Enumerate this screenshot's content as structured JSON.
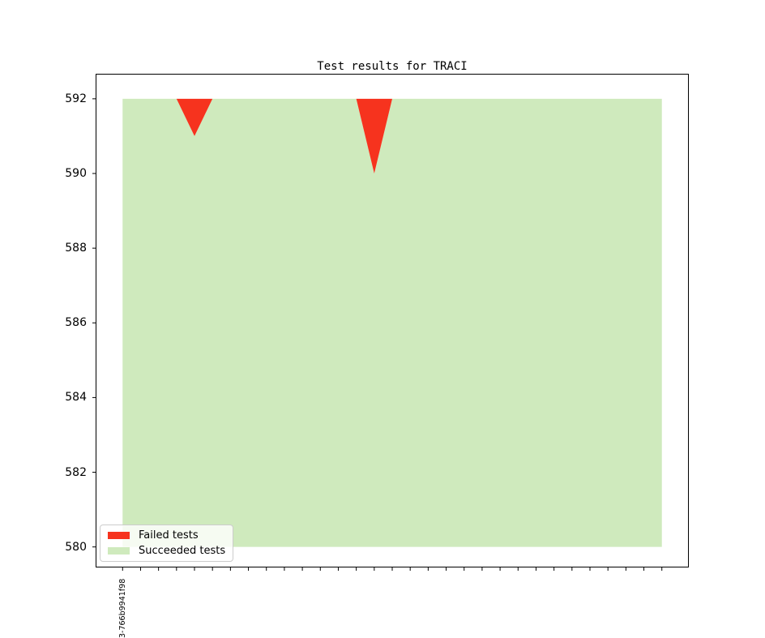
{
  "chart_data": {
    "type": "area",
    "stacked": true,
    "title": "Test results for TRACI",
    "stack_total_per_point": 592,
    "n_points": 31,
    "x_first_tick_label": "3-766b9941f98",
    "yticks": [
      580,
      582,
      584,
      586,
      588,
      590,
      592
    ],
    "ylim": [
      579.45,
      592.67
    ],
    "xlim_index": [
      -1.5,
      31.5
    ],
    "area_baseline": 580,
    "grid": false,
    "legend": {
      "position": "lower left",
      "entries": [
        "Failed tests",
        "Succeeded tests"
      ]
    },
    "series": [
      {
        "key": "failed",
        "name": "Failed tests",
        "color": "#f6331e",
        "values": [
          0,
          0,
          0,
          0,
          1,
          0,
          0,
          0,
          0,
          0,
          0,
          0,
          0,
          0,
          2,
          0,
          0,
          0,
          0,
          0,
          0,
          0,
          0,
          0,
          0,
          0,
          0,
          0,
          0,
          0,
          0
        ]
      },
      {
        "key": "succeeded",
        "name": "Succeeded tests",
        "color": "#cfeabd",
        "values": [
          592,
          592,
          592,
          592,
          591,
          592,
          592,
          592,
          592,
          592,
          592,
          592,
          592,
          592,
          590,
          592,
          592,
          592,
          592,
          592,
          592,
          592,
          592,
          592,
          592,
          592,
          592,
          592,
          592,
          592,
          592
        ]
      }
    ]
  },
  "colors": {
    "spine": "#000000",
    "tick": "#000000",
    "legend_border": "#cccccc"
  }
}
